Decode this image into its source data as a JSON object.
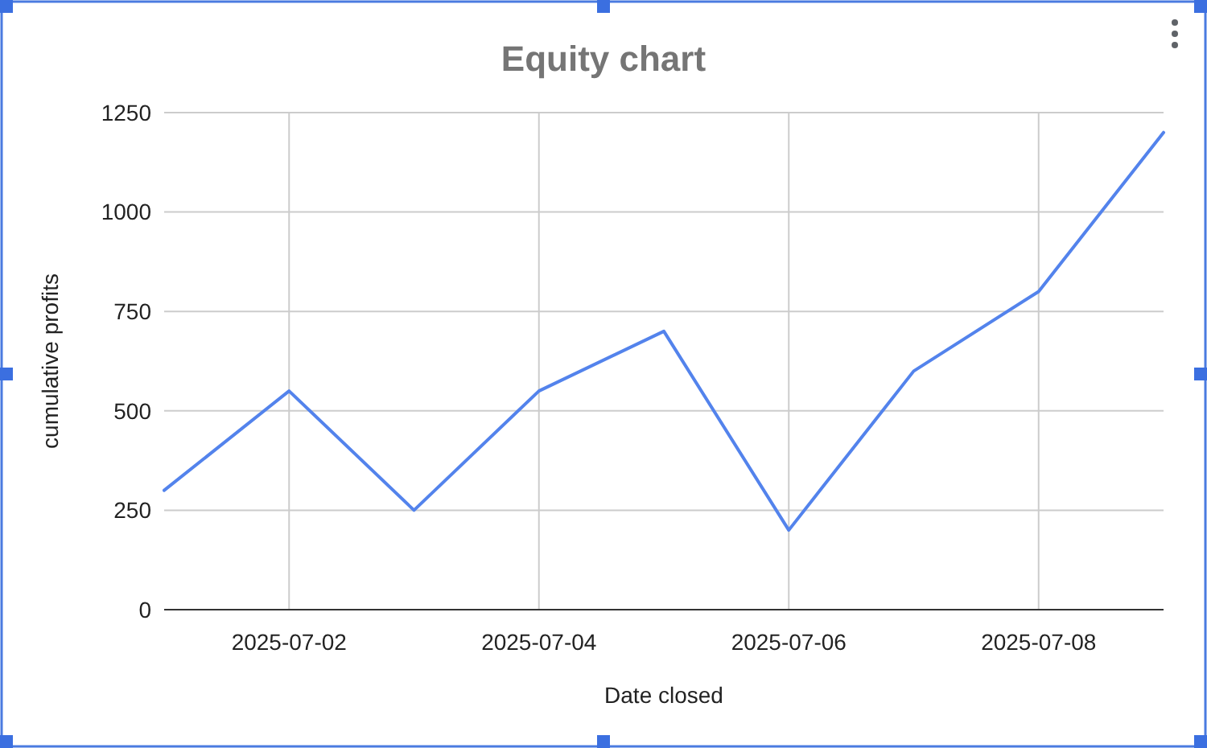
{
  "chart_data": {
    "type": "line",
    "title": "Equity chart",
    "xlabel": "Date closed",
    "ylabel": "cumulative profits",
    "x": [
      "2025-07-01",
      "2025-07-02",
      "2025-07-03",
      "2025-07-04",
      "2025-07-05",
      "2025-07-06",
      "2025-07-07",
      "2025-07-08",
      "2025-07-09"
    ],
    "series": [
      {
        "color": "#5383ec",
        "values": [
          300,
          550,
          250,
          550,
          700,
          200,
          600,
          800,
          1200
        ]
      }
    ],
    "xlim": [
      "2025-07-01",
      "2025-07-09"
    ],
    "xticks": [
      "2025-07-02",
      "2025-07-04",
      "2025-07-06",
      "2025-07-08"
    ],
    "ylim": [
      0,
      1250
    ],
    "yticks": [
      0,
      250,
      500,
      750,
      1000,
      1250
    ],
    "grid": true,
    "marker": "none",
    "line_style": "solid"
  }
}
